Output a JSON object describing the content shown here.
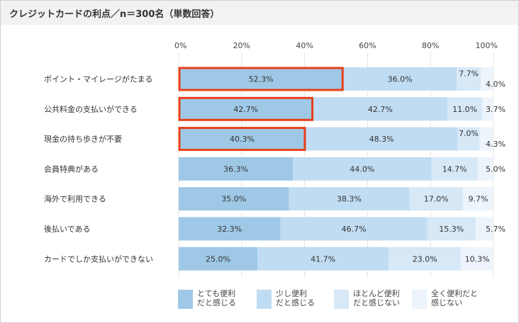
{
  "title": "クレジットカードの利点／n＝300名（単数回答）",
  "chart_data": {
    "type": "bar",
    "orientation": "horizontal",
    "stacked": true,
    "x_ticks": [
      "0%",
      "20%",
      "40%",
      "60%",
      "80%",
      "100%"
    ],
    "xlim": [
      0,
      100
    ],
    "categories": [
      "ポイント・マイレージがたまる",
      "公共料金の支払いができる",
      "現金の持ち歩きが不要",
      "会員特典がある",
      "海外で利用できる",
      "後払いである",
      "カードでしか支払いができない"
    ],
    "series": [
      {
        "name": "とても便利だと感じる",
        "color": "#9fc8e7",
        "values": [
          52.3,
          42.7,
          40.3,
          36.3,
          35.0,
          32.3,
          25.0
        ]
      },
      {
        "name": "少し便利だと感じる",
        "color": "#c0dcf2",
        "values": [
          36.0,
          42.7,
          48.3,
          44.0,
          38.3,
          46.7,
          41.7
        ]
      },
      {
        "name": "ほとんど便利だと感じない",
        "color": "#d7e8f6",
        "values": [
          7.7,
          11.0,
          7.0,
          14.7,
          17.0,
          15.3,
          23.0
        ]
      },
      {
        "name": "全く便利だと感じない",
        "color": "#edf4fb",
        "values": [
          4.0,
          3.7,
          4.3,
          5.0,
          9.7,
          5.7,
          10.3
        ]
      }
    ],
    "labels": [
      [
        "52.3%",
        "36.0%",
        "7.7%",
        "4.0%"
      ],
      [
        "42.7%",
        "42.7%",
        "11.0%",
        "3.7%"
      ],
      [
        "40.3%",
        "48.3%",
        "7.0%",
        "4.3%"
      ],
      [
        "36.3%",
        "44.0%",
        "14.7%",
        "5.0%"
      ],
      [
        "35.0%",
        "38.3%",
        "17.0%",
        "9.7%"
      ],
      [
        "32.3%",
        "46.7%",
        "15.3%",
        "5.7%"
      ],
      [
        "25.0%",
        "41.7%",
        "23.0%",
        "10.3%"
      ]
    ],
    "highlighted_rows": [
      0,
      1,
      2
    ],
    "highlight_color": "#e8401c",
    "legend_position": "bottom",
    "legend": [
      [
        "とても便利",
        "だと感じる"
      ],
      [
        "少し便利",
        "だと感じる"
      ],
      [
        "ほとんど便利",
        "だと感じない"
      ],
      [
        "全く便利だと",
        "感じない"
      ]
    ],
    "grid": true
  }
}
